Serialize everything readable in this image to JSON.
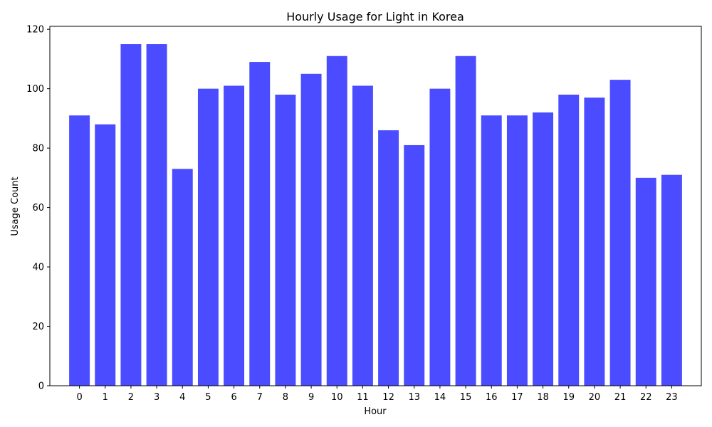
{
  "chart_data": {
    "type": "bar",
    "title": "Hourly Usage for Light in Korea",
    "xlabel": "Hour",
    "ylabel": "Usage Count",
    "categories": [
      "0",
      "1",
      "2",
      "3",
      "4",
      "5",
      "6",
      "7",
      "8",
      "9",
      "10",
      "11",
      "12",
      "13",
      "14",
      "15",
      "16",
      "17",
      "18",
      "19",
      "20",
      "21",
      "22",
      "23"
    ],
    "values": [
      91,
      88,
      115,
      115,
      73,
      100,
      101,
      109,
      98,
      105,
      111,
      101,
      86,
      81,
      100,
      111,
      91,
      91,
      92,
      98,
      97,
      103,
      70,
      71
    ],
    "ylim": [
      0,
      121
    ],
    "yticks": [
      0,
      20,
      40,
      60,
      80,
      100,
      120
    ],
    "bar_color": "#4b4bff",
    "grid": false,
    "legend": "none"
  }
}
